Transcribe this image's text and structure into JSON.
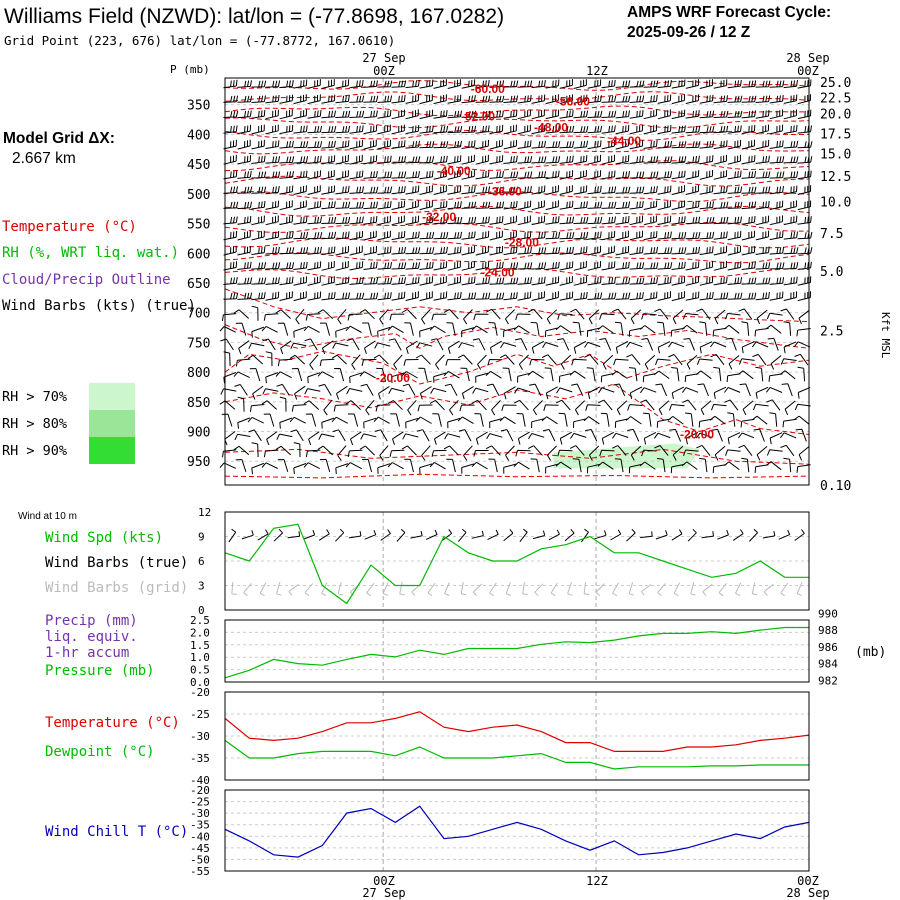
{
  "header": {
    "title": "Williams Field (NZWD):  lat/lon = (-77.8698, 167.0282)",
    "grid_point": "Grid Point (223, 676) lat/lon = (-77.8772, 167.0610)",
    "cycle_label": "AMPS WRF Forecast Cycle:",
    "cycle_value": "2025-09-26 / 12  Z"
  },
  "left_panel": {
    "model_grid_label": "Model Grid ΔX:",
    "model_grid_value": "2.667 km",
    "temperature_label": "Temperature (°C)",
    "rh_label": "RH (%, WRT liq. wat.)",
    "cloud_label": "Cloud/Precip Outline",
    "wind_barbs_label": "Wind Barbs (kts) (true)",
    "rh_legend": [
      {
        "label": "RH > 70%",
        "color": "#ccf7cc"
      },
      {
        "label": "RH > 80%",
        "color": "#99e699"
      },
      {
        "label": "RH > 90%",
        "color": "#33dd33"
      }
    ]
  },
  "time_axis": {
    "top_dates": [
      "27 Sep",
      "28 Sep"
    ],
    "top_hours": [
      "00Z",
      "12Z",
      "00Z"
    ],
    "bottom_hours": [
      "00Z",
      "12Z",
      "00Z"
    ],
    "bottom_dates": [
      "27 Sep",
      "28 Sep"
    ]
  },
  "colors": {
    "temperature": "#dd0000",
    "rh": "#00bb00",
    "cloud": "#7733aa",
    "wind_grid": "#bbbbbb",
    "wind_chill": "#0000bb",
    "precip": "#7733aa"
  },
  "chart_data": [
    {
      "type": "heatmap",
      "p_label": "P (mb)",
      "y_ticks": [
        "350",
        "400",
        "450",
        "500",
        "550",
        "600",
        "650",
        "700",
        "750",
        "800",
        "850",
        "900",
        "950"
      ],
      "y_tick_values": [
        350,
        400,
        450,
        500,
        550,
        600,
        650,
        700,
        750,
        800,
        850,
        900,
        950
      ],
      "ylim": [
        305,
        990
      ],
      "right_label": "Kft MSL",
      "right_ticks": [
        "25.0",
        "22.5",
        "20.0",
        "17.5",
        "15.0",
        "12.5",
        "10.0",
        "7.5",
        "5.0",
        "2.5",
        "0.10"
      ],
      "right_tick_pressures": [
        312,
        338,
        365,
        398,
        432,
        470,
        513,
        566,
        630,
        730,
        990
      ],
      "isotherm_labels": [
        {
          "text": "-60.00",
          "t": 10.8,
          "p": 322
        },
        {
          "text": "-56.00",
          "t": 14.3,
          "p": 343
        },
        {
          "text": "-52.00",
          "t": 10.4,
          "p": 368
        },
        {
          "text": "-48.00",
          "t": 13.4,
          "p": 387
        },
        {
          "text": "-44.00",
          "t": 16.4,
          "p": 409
        },
        {
          "text": "-40.00",
          "t": 9.4,
          "p": 460
        },
        {
          "text": "-36.00",
          "t": 11.5,
          "p": 494
        },
        {
          "text": "-32.00",
          "t": 8.8,
          "p": 537
        },
        {
          "text": "-28.00",
          "t": 12.2,
          "p": 580
        },
        {
          "text": "-24.00",
          "t": 11.2,
          "p": 631
        },
        {
          "text": "-20.00",
          "t": 6.9,
          "p": 808
        },
        {
          "text": "-20.00",
          "t": 19.4,
          "p": 903
        }
      ],
      "rh_area": {
        "t_start": 13.5,
        "t_end": 19.5,
        "p_top": 930,
        "p_bottom": 962
      }
    },
    {
      "type": "line",
      "title": "Wind at 10 m",
      "labels": [
        "Wind Spd (kts)",
        "Wind Barbs (true)",
        "Wind Barbs (grid)"
      ],
      "yticks": [
        0,
        3,
        6,
        9,
        12
      ],
      "ylim": [
        0,
        12
      ],
      "x": [
        0,
        1,
        2,
        3,
        4,
        5,
        6,
        7,
        8,
        9,
        10,
        11,
        12,
        13,
        14,
        15,
        16,
        17,
        18,
        19,
        20,
        21,
        22,
        23,
        24
      ],
      "series": [
        {
          "name": "Wind Spd (kts)",
          "values": [
            7,
            6,
            10,
            10.5,
            3,
            0.8,
            5.5,
            3,
            3,
            9,
            7,
            6,
            6,
            7.5,
            8,
            9,
            7,
            7,
            6,
            5,
            4,
            4.5,
            6,
            4,
            4
          ]
        }
      ]
    },
    {
      "type": "line",
      "labels": [
        "Precip (mm)",
        "liq. equiv.",
        "1-hr accum",
        "Pressure (mb)"
      ],
      "yticks_left": [
        "0.0",
        "0.5",
        "1.0",
        "1.5",
        "2.0",
        "2.5"
      ],
      "ylim_left": [
        0,
        2.5
      ],
      "yticks_right": [
        "982",
        "984",
        "986",
        "988",
        "990"
      ],
      "ylim_right": [
        981.8,
        989.2
      ],
      "right_unit": "(mb)",
      "x": [
        0,
        1,
        2,
        3,
        4,
        5,
        6,
        7,
        8,
        9,
        10,
        11,
        12,
        13,
        14,
        15,
        16,
        17,
        18,
        19,
        20,
        21,
        22,
        23,
        24
      ],
      "series": [
        {
          "name": "Pressure (mb)",
          "values": [
            982.3,
            983.2,
            984.5,
            984.0,
            983.8,
            984.5,
            985.1,
            984.8,
            985.6,
            985.1,
            985.8,
            985.8,
            985.8,
            986.3,
            986.6,
            986.5,
            986.8,
            987.3,
            987.6,
            987.6,
            987.8,
            987.6,
            988.0,
            988.3,
            988.3
          ]
        }
      ]
    },
    {
      "type": "line",
      "labels": [
        "Temperature (°C)",
        "Dewpoint (°C)"
      ],
      "yticks": [
        -40,
        -35,
        -30,
        -25,
        -20
      ],
      "ylim": [
        -40,
        -20
      ],
      "x": [
        0,
        1,
        2,
        3,
        4,
        5,
        6,
        7,
        8,
        9,
        10,
        11,
        12,
        13,
        14,
        15,
        16,
        17,
        18,
        19,
        20,
        21,
        22,
        23,
        24
      ],
      "series": [
        {
          "name": "Temperature (°C)",
          "values": [
            -26,
            -30.5,
            -31,
            -30.5,
            -29,
            -27,
            -27,
            -26,
            -24.5,
            -28,
            -29,
            -28,
            -27.5,
            -29,
            -31.5,
            -31.5,
            -33.5,
            -33.5,
            -33.5,
            -32.5,
            -32.5,
            -32,
            -31,
            -30.5,
            -29.8
          ]
        },
        {
          "name": "Dewpoint (°C)",
          "values": [
            -31,
            -35,
            -35,
            -34,
            -33.5,
            -33.5,
            -33.5,
            -34.5,
            -32.5,
            -35,
            -35,
            -35,
            -34.5,
            -34,
            -36,
            -36,
            -37.5,
            -37,
            -37,
            -37,
            -36.8,
            -36.8,
            -36.6,
            -36.6,
            -36.6
          ]
        }
      ]
    },
    {
      "type": "line",
      "labels": [
        "Wind Chill T (°C)"
      ],
      "yticks": [
        -55,
        -50,
        -45,
        -40,
        -35,
        -30,
        -25,
        -20
      ],
      "ylim": [
        -55,
        -20
      ],
      "x": [
        0,
        1,
        2,
        3,
        4,
        5,
        6,
        7,
        8,
        9,
        10,
        11,
        12,
        13,
        14,
        15,
        16,
        17,
        18,
        19,
        20,
        21,
        22,
        23,
        24
      ],
      "series": [
        {
          "name": "Wind Chill T (°C)",
          "values": [
            -37,
            -42,
            -48,
            -49,
            -44,
            -30,
            -28,
            -34,
            -27,
            -41,
            -40,
            -37,
            -34,
            -37,
            -42,
            -46,
            -42,
            -48,
            -47,
            -45,
            -42,
            -39,
            -41,
            -36,
            -34
          ]
        }
      ]
    }
  ]
}
